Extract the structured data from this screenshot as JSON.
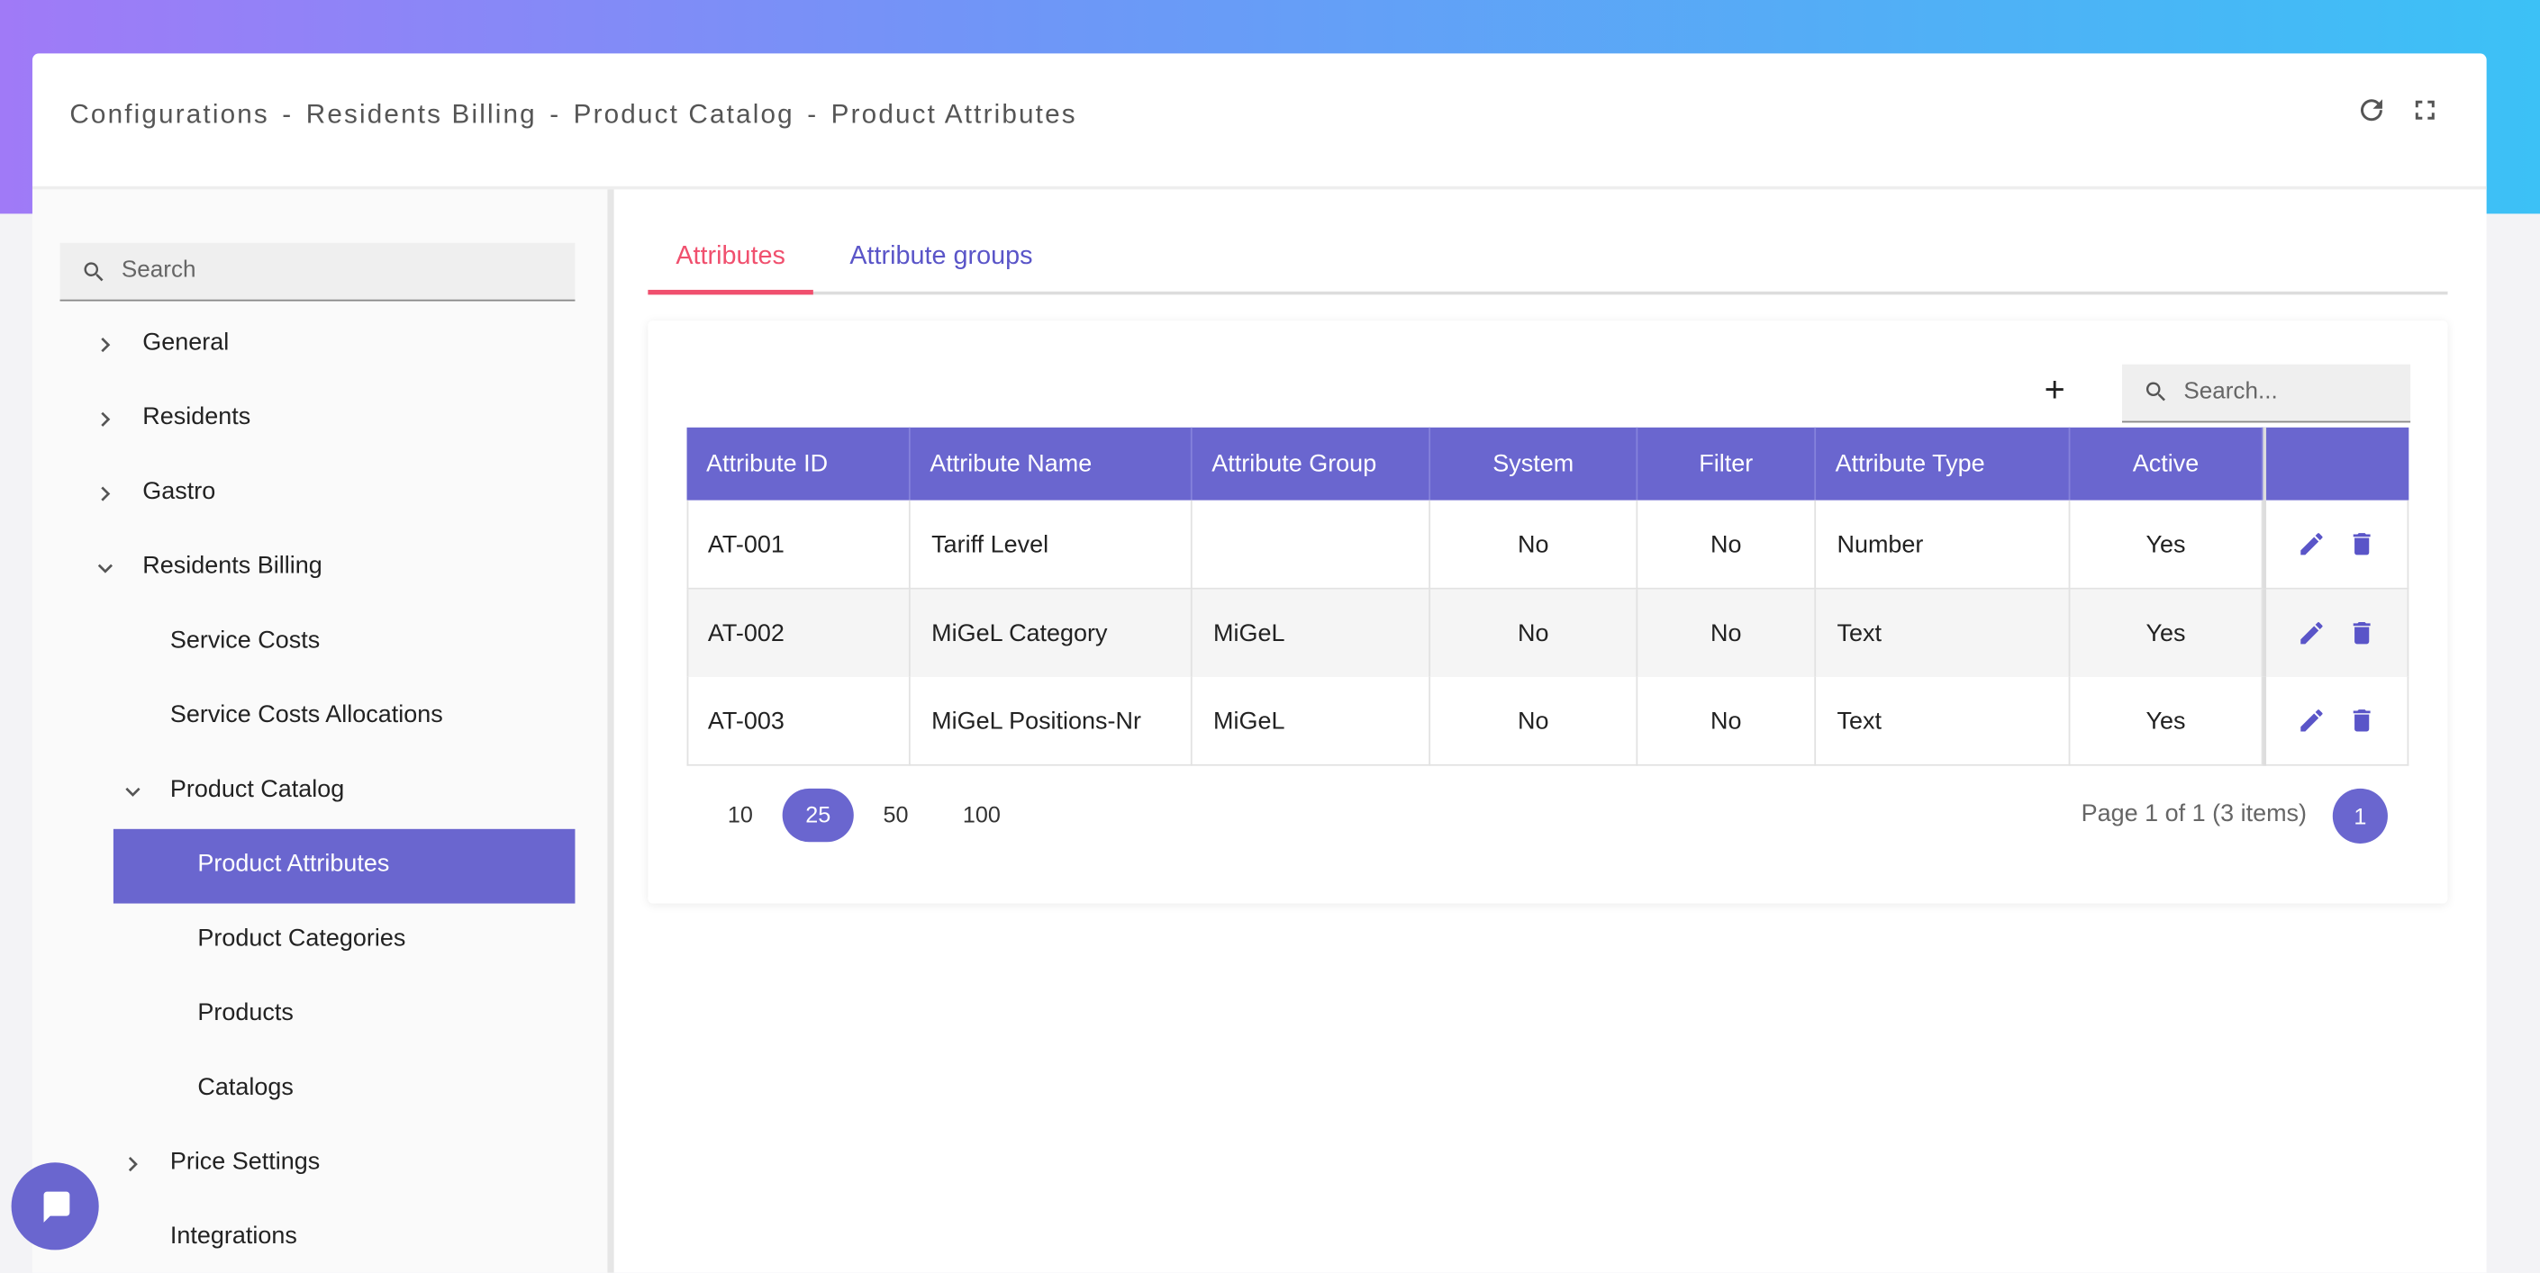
{
  "header": {
    "breadcrumb": [
      "Configurations",
      "Residents Billing",
      "Product Catalog",
      "Product Attributes"
    ],
    "breadcrumb_separator": "-"
  },
  "sidebar": {
    "search_placeholder": "Search",
    "nav": [
      {
        "label": "General",
        "expandable": true,
        "expanded": false
      },
      {
        "label": "Residents",
        "expandable": true,
        "expanded": false
      },
      {
        "label": "Gastro",
        "expandable": true,
        "expanded": false
      },
      {
        "label": "Residents Billing",
        "expandable": true,
        "expanded": true,
        "children": [
          {
            "label": "Service Costs"
          },
          {
            "label": "Service Costs Allocations"
          },
          {
            "label": "Product Catalog",
            "expandable": true,
            "expanded": true,
            "children": [
              {
                "label": "Product Attributes",
                "active": true
              },
              {
                "label": "Product Categories"
              },
              {
                "label": "Products"
              },
              {
                "label": "Catalogs"
              }
            ]
          },
          {
            "label": "Price Settings",
            "expandable": true,
            "expanded": false
          },
          {
            "label": "Integrations"
          }
        ]
      }
    ]
  },
  "tabs": {
    "items": [
      "Attributes",
      "Attribute groups"
    ],
    "active": 0
  },
  "table": {
    "add_button": "+",
    "search_placeholder": "Search...",
    "columns": [
      "Attribute ID",
      "Attribute Name",
      "Attribute Group",
      "System",
      "Filter",
      "Attribute Type",
      "Active"
    ],
    "rows": [
      [
        "AT-001",
        "Tariff Level",
        null,
        "No",
        "No",
        "Number",
        "Yes"
      ],
      [
        "AT-002",
        "MiGeL Category",
        "MiGeL",
        "No",
        "No",
        "Text",
        "Yes"
      ],
      [
        "AT-003",
        "MiGeL Positions-Nr",
        "MiGeL",
        "No",
        "No",
        "Text",
        "Yes"
      ]
    ],
    "page_sizes": [
      10,
      25,
      50,
      100
    ],
    "page_size_selected": 1,
    "page_info": "Page 1 of 1 (3 items)",
    "pages": [
      1
    ],
    "current_page": 0
  }
}
